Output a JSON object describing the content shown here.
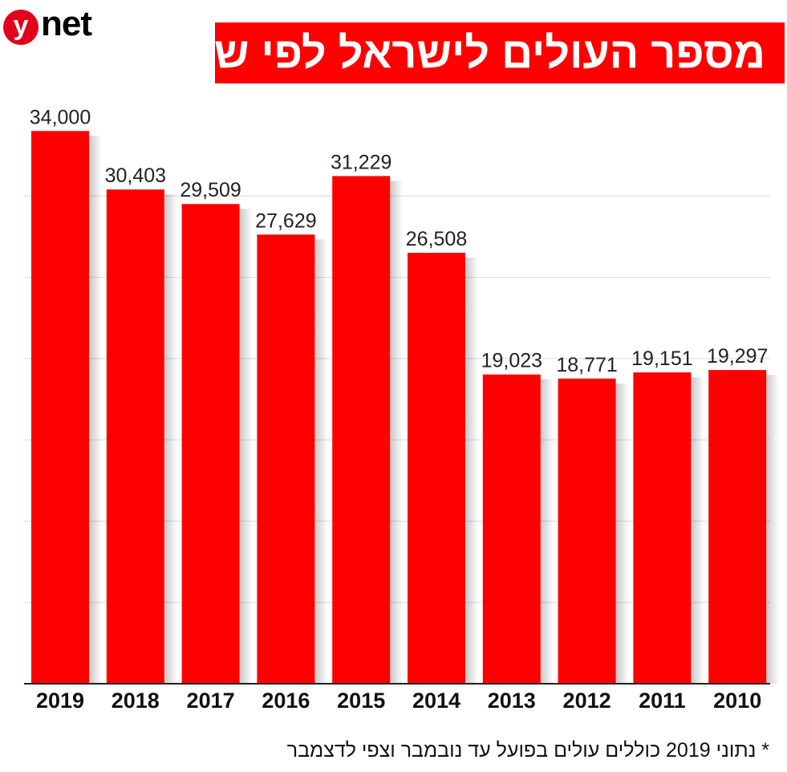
{
  "logo": {
    "mark": "y",
    "text": "net"
  },
  "chart_data": {
    "type": "bar",
    "title": "מספר העולים לישראל לפי שנים",
    "categories": [
      "2019",
      "2018",
      "2017",
      "2016",
      "2015",
      "2014",
      "2013",
      "2012",
      "2011",
      "2010"
    ],
    "values": [
      34000,
      30403,
      29509,
      27629,
      31229,
      26508,
      19023,
      18771,
      19151,
      19297
    ],
    "value_labels": [
      "34,000",
      "30,403",
      "29,509",
      "27,629",
      "31,229",
      "26,508",
      "19,023",
      "18,771",
      "19,151",
      "19,297"
    ],
    "xlabel": "",
    "ylabel": "",
    "ylim": [
      0,
      35000
    ],
    "grid": true,
    "colors": {
      "bar": "#ff0000",
      "title_bg": "#ff0000",
      "grid": "#d9d9d9",
      "axis": "#222222"
    }
  },
  "footnote": "* נתוני 2019 כוללים עולים בפועל עד נובמבר וצפי לדצמבר"
}
